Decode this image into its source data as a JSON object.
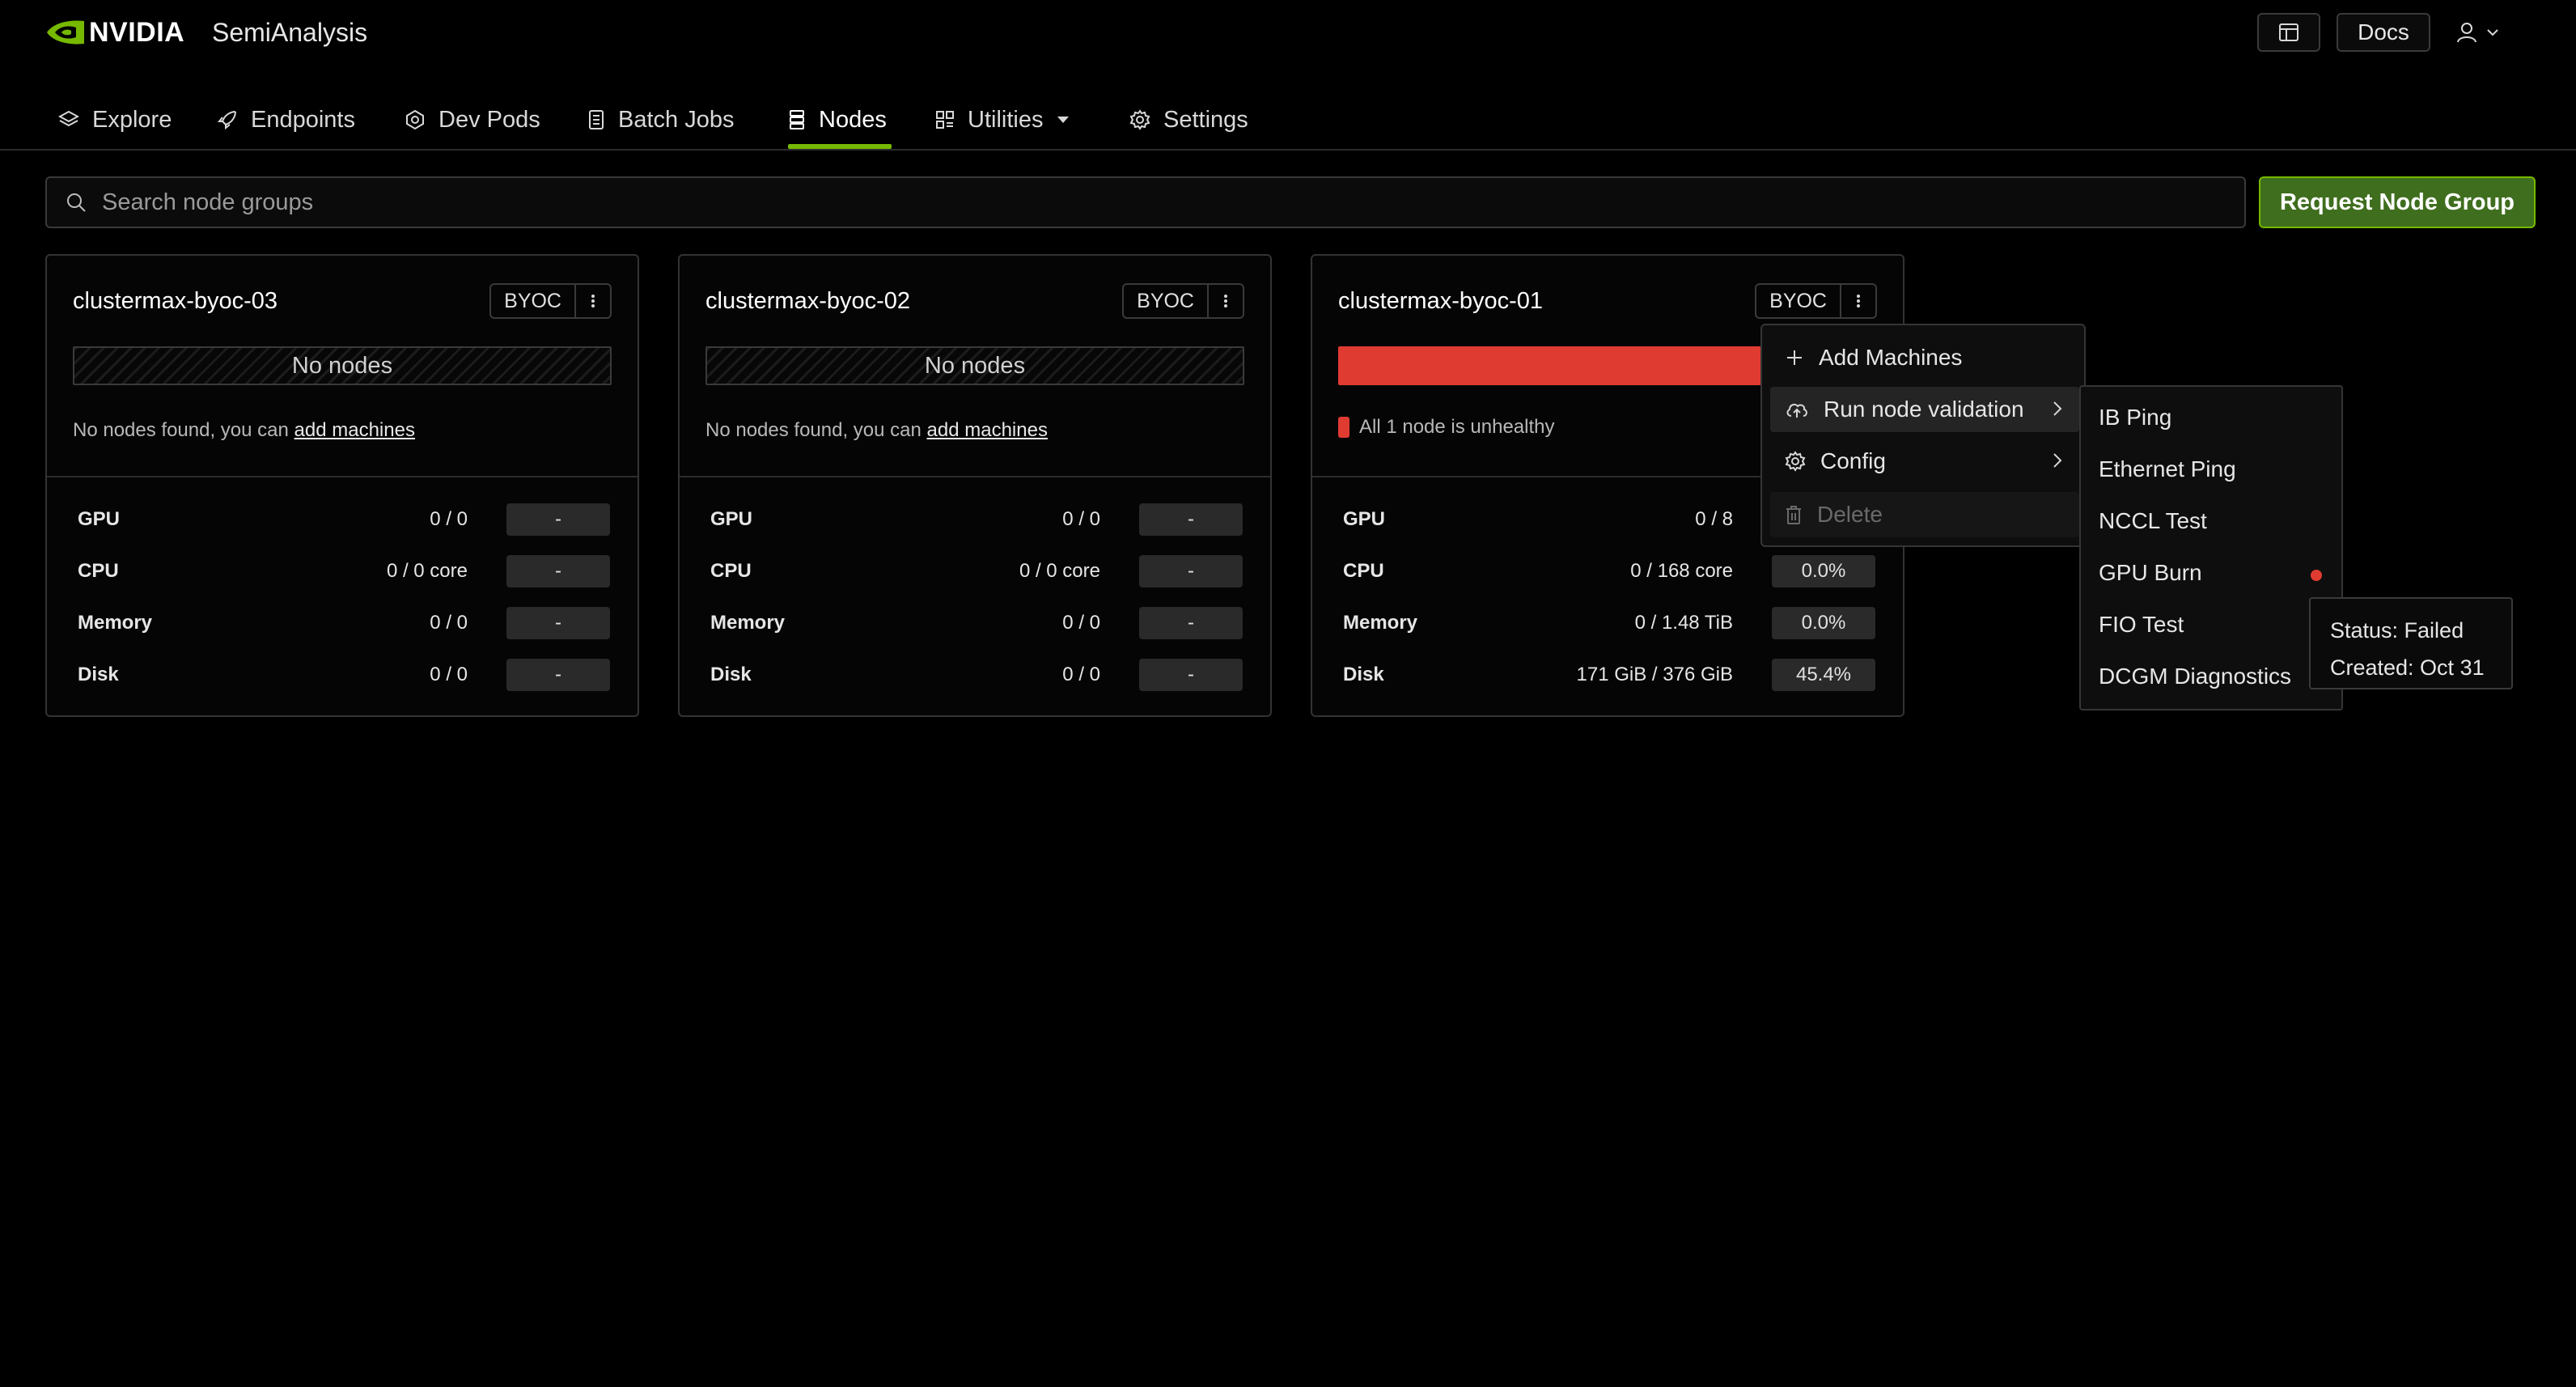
{
  "header": {
    "brand": "NVIDIA",
    "org": "SemiAnalysis",
    "docs_label": "Docs"
  },
  "nav": {
    "tabs": [
      {
        "label": "Explore",
        "icon": "layers-icon"
      },
      {
        "label": "Endpoints",
        "icon": "rocket-icon"
      },
      {
        "label": "Dev Pods",
        "icon": "hexagon-icon"
      },
      {
        "label": "Batch Jobs",
        "icon": "list-icon"
      },
      {
        "label": "Nodes",
        "icon": "server-icon",
        "active": true
      },
      {
        "label": "Utilities",
        "icon": "grid-icon"
      },
      {
        "label": "Settings",
        "icon": "gear-icon"
      }
    ]
  },
  "search": {
    "placeholder": "Search node groups"
  },
  "request_button": "Request Node Group",
  "cards": [
    {
      "name": "clustermax-byoc-03",
      "badge": "BYOC",
      "status": "No nodes",
      "message_prefix": "No nodes found, you can",
      "message_link": "add machines",
      "metrics": [
        {
          "label": "GPU",
          "value": "0 / 0",
          "pct": "-"
        },
        {
          "label": "CPU",
          "value": "0 / 0 core",
          "pct": "-"
        },
        {
          "label": "Memory",
          "value": "0 / 0",
          "pct": "-"
        },
        {
          "label": "Disk",
          "value": "0 / 0",
          "pct": "-"
        }
      ]
    },
    {
      "name": "clustermax-byoc-02",
      "badge": "BYOC",
      "status": "No nodes",
      "message_prefix": "No nodes found, you can",
      "message_link": "add machines",
      "metrics": [
        {
          "label": "GPU",
          "value": "0 / 0",
          "pct": "-"
        },
        {
          "label": "CPU",
          "value": "0 / 0 core",
          "pct": "-"
        },
        {
          "label": "Memory",
          "value": "0 / 0",
          "pct": "-"
        },
        {
          "label": "Disk",
          "value": "0 / 0",
          "pct": "-"
        }
      ]
    },
    {
      "name": "clustermax-byoc-01",
      "badge": "BYOC",
      "health_message": "All 1 node is unhealthy",
      "health_color": "#e03b31",
      "metrics": [
        {
          "label": "GPU",
          "value": "0 / 8",
          "pct": ""
        },
        {
          "label": "CPU",
          "value": "0 / 168 core",
          "pct": "0.0%"
        },
        {
          "label": "Memory",
          "value": "0 / 1.48 TiB",
          "pct": "0.0%"
        },
        {
          "label": "Disk",
          "value": "171 GiB / 376 GiB",
          "pct": "45.4%"
        }
      ]
    }
  ],
  "context_menu": {
    "items": [
      {
        "label": "Add Machines",
        "icon": "plus-icon"
      },
      {
        "label": "Run node validation",
        "icon": "cloud-upload-icon",
        "has_submenu": true
      },
      {
        "label": "Config",
        "icon": "gear-icon",
        "has_submenu": true
      },
      {
        "label": "Delete",
        "icon": "trash-icon",
        "disabled": true
      }
    ]
  },
  "validation_menu": {
    "items": [
      "IB Ping",
      "Ethernet Ping",
      "NCCL Test",
      "GPU Burn",
      "FIO Test",
      "DCGM Diagnostics"
    ]
  },
  "tooltip": {
    "status": "Status: Failed",
    "created": "Created: Oct 31"
  },
  "colors": {
    "accent": "#76b900",
    "primary_button": "#3f6e1e",
    "error": "#e03b31"
  }
}
